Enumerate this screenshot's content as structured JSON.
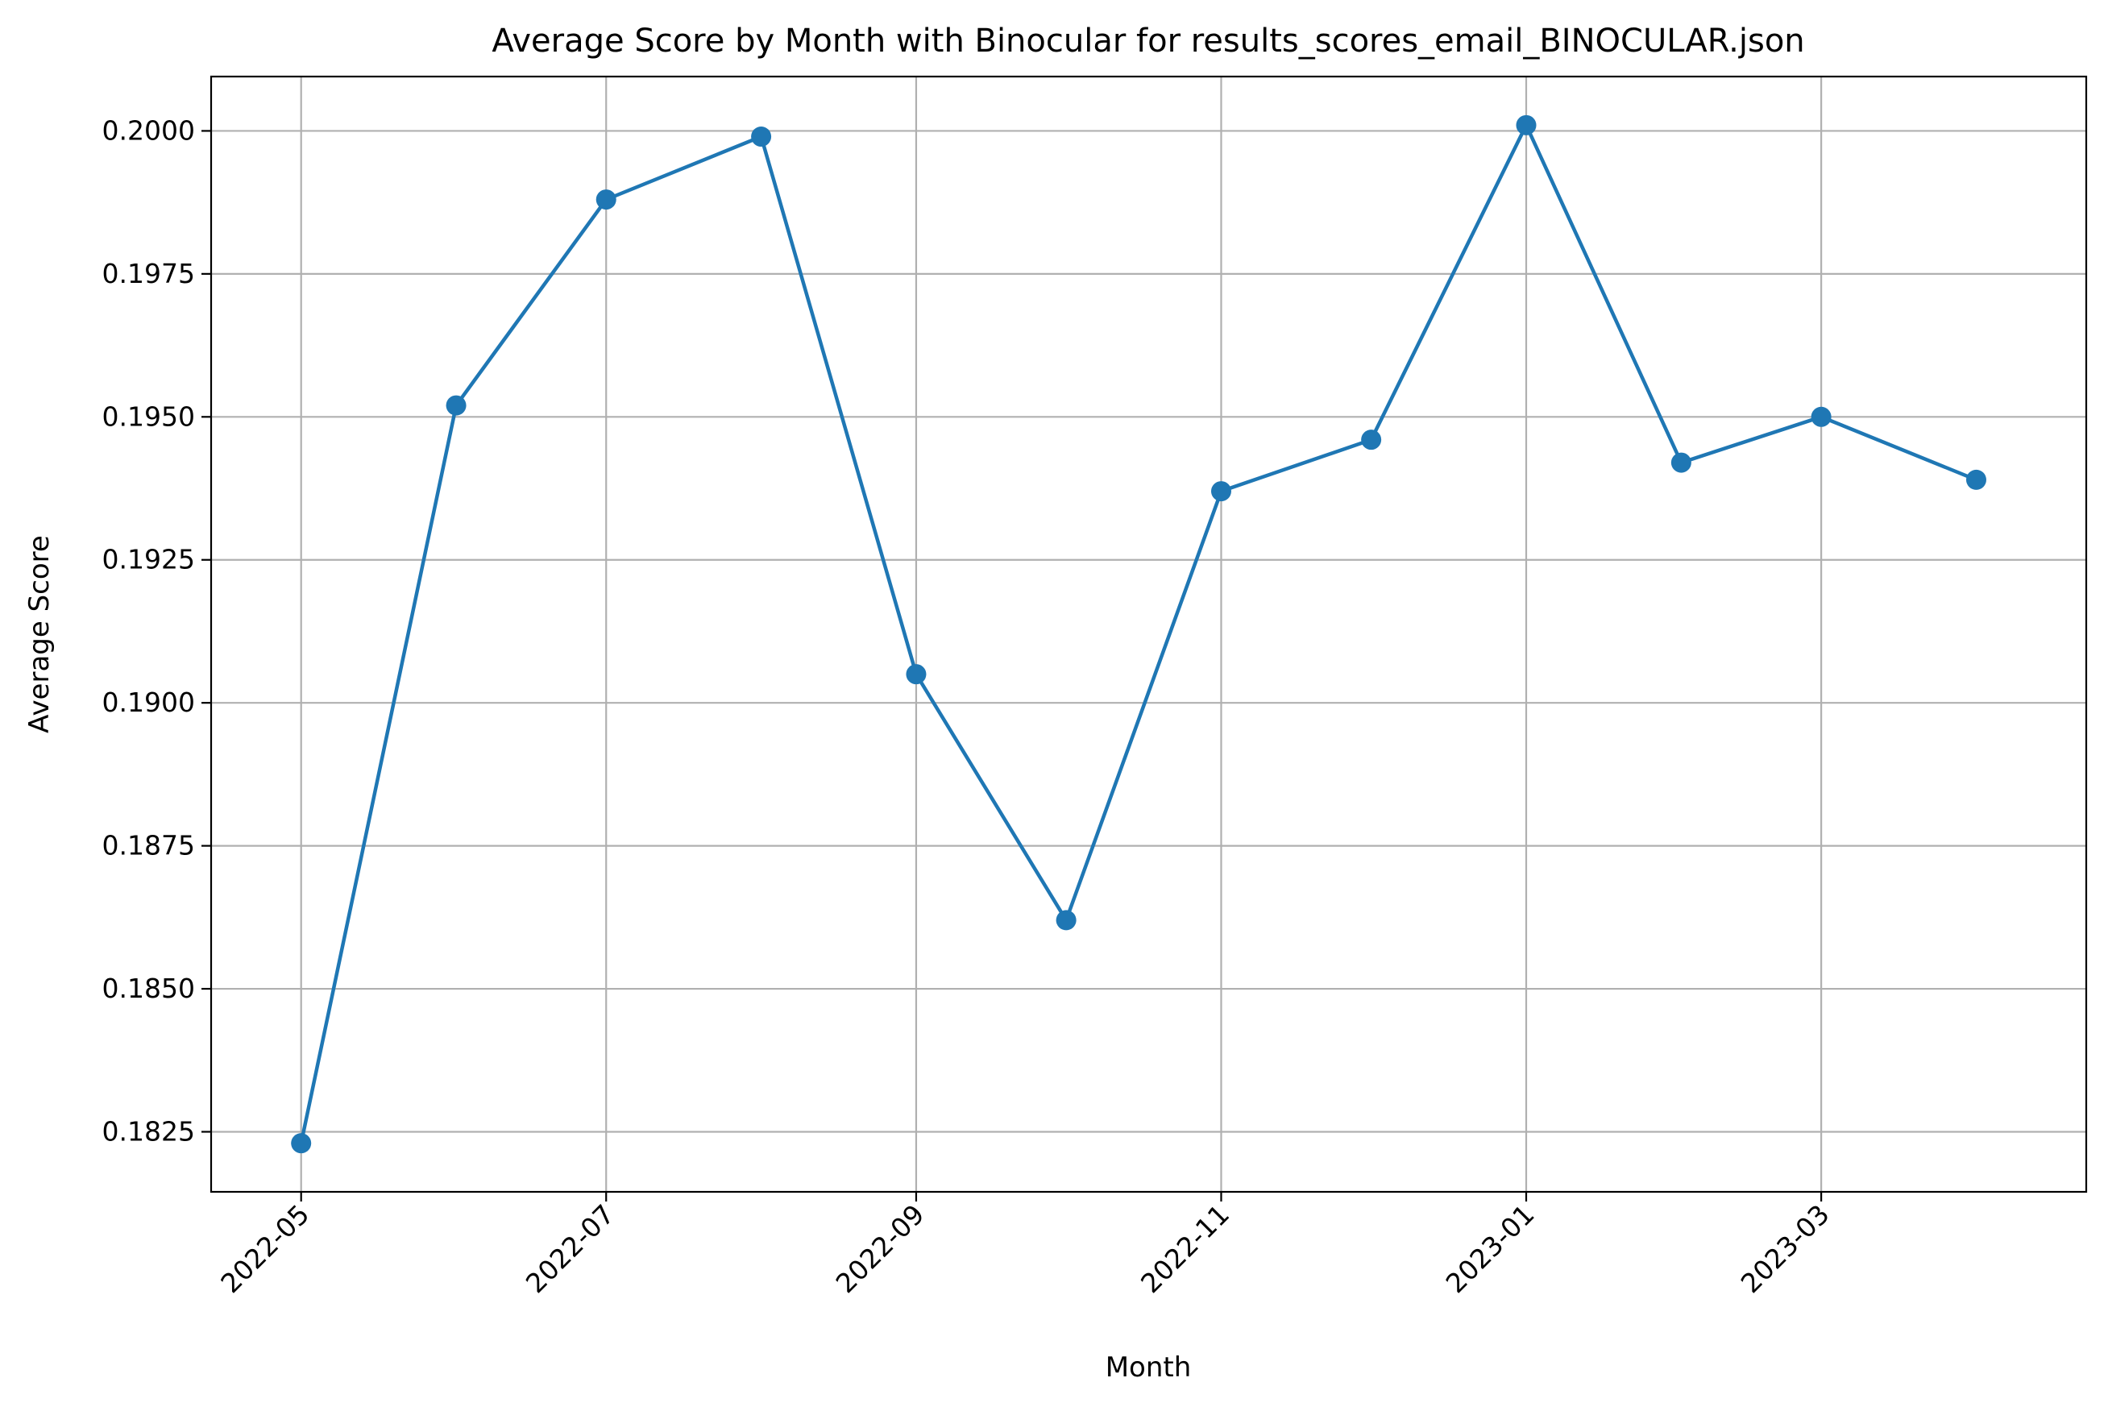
{
  "chart_data": {
    "type": "line",
    "title": "Average Score by Month with Binocular for results_scores_email_BINOCULAR.json",
    "xlabel": "Month",
    "ylabel": "Average Score",
    "x": [
      "2022-05",
      "2022-06",
      "2022-07",
      "2022-08",
      "2022-09",
      "2022-10",
      "2022-11",
      "2022-12",
      "2023-01",
      "2023-02",
      "2023-03",
      "2023-04"
    ],
    "series": [
      {
        "values": [
          0.1823,
          0.1952,
          0.1988,
          0.1999,
          0.1905,
          0.1862,
          0.1937,
          0.1946,
          0.2001,
          0.1942,
          0.195,
          0.1939
        ],
        "color": "#1f77b4"
      }
    ],
    "x_ticks": [
      "2022-05",
      "2022-07",
      "2022-09",
      "2022-11",
      "2023-01",
      "2023-03"
    ],
    "y_ticks": [
      "0.1825",
      "0.1850",
      "0.1875",
      "0.1900",
      "0.1925",
      "0.1950",
      "0.1975",
      "0.2000"
    ],
    "xlim": [
      "2022-04-13",
      "2023-04-23"
    ],
    "ylim": [
      0.18145,
      0.20095
    ],
    "grid": true,
    "legend": "none"
  }
}
